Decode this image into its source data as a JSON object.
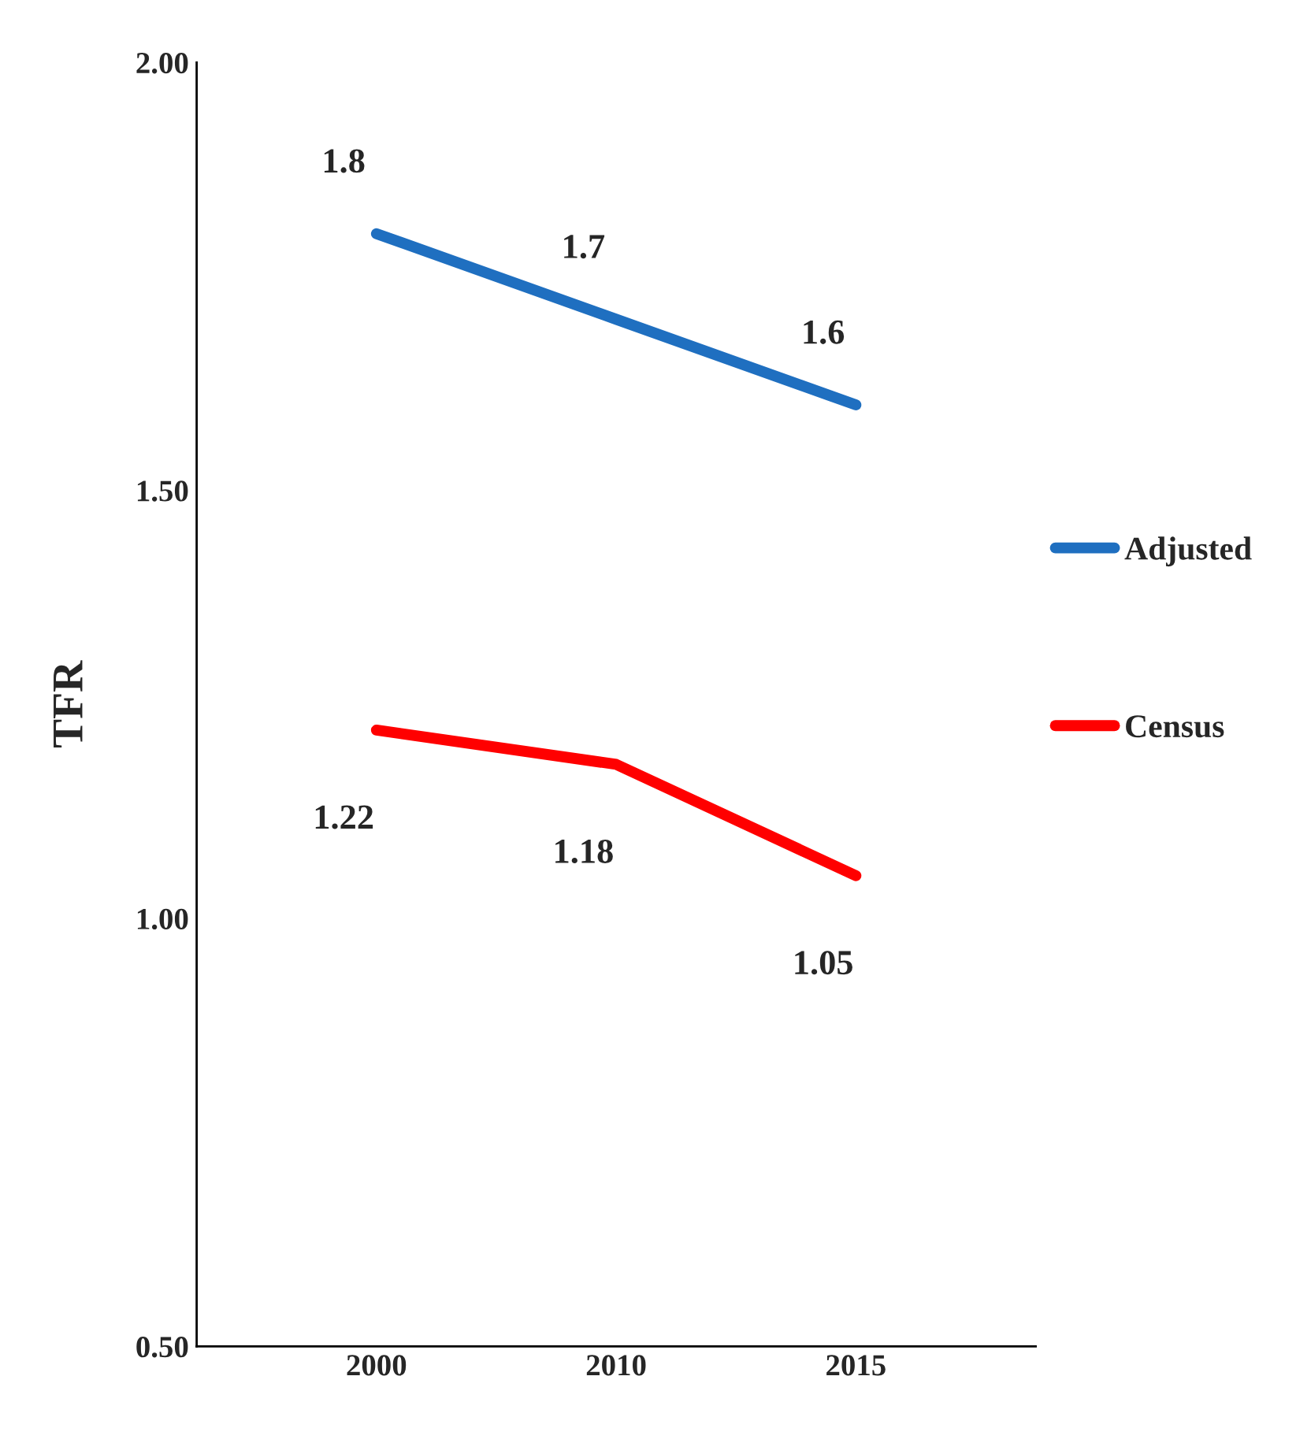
{
  "chart_data": {
    "type": "line",
    "ylabel": "TFR",
    "categories": [
      "2000",
      "2010",
      "2015"
    ],
    "series": [
      {
        "name": "Adjusted",
        "color": "#1f6fc0",
        "values": [
          1.8,
          1.7,
          1.6
        ]
      },
      {
        "name": "Census",
        "color": "#ff0000",
        "values": [
          1.22,
          1.18,
          1.05
        ]
      }
    ],
    "ylim": [
      0.5,
      2.0
    ],
    "yticks": [
      {
        "value": 0.5,
        "label": "0.50"
      },
      {
        "value": 1.0,
        "label": "1.00"
      },
      {
        "value": 1.5,
        "label": "1.50"
      },
      {
        "value": 2.0,
        "label": "2.00"
      }
    ],
    "data_labels": true,
    "legend": "right",
    "grid": false,
    "marker": "none",
    "line_style": "solid"
  }
}
